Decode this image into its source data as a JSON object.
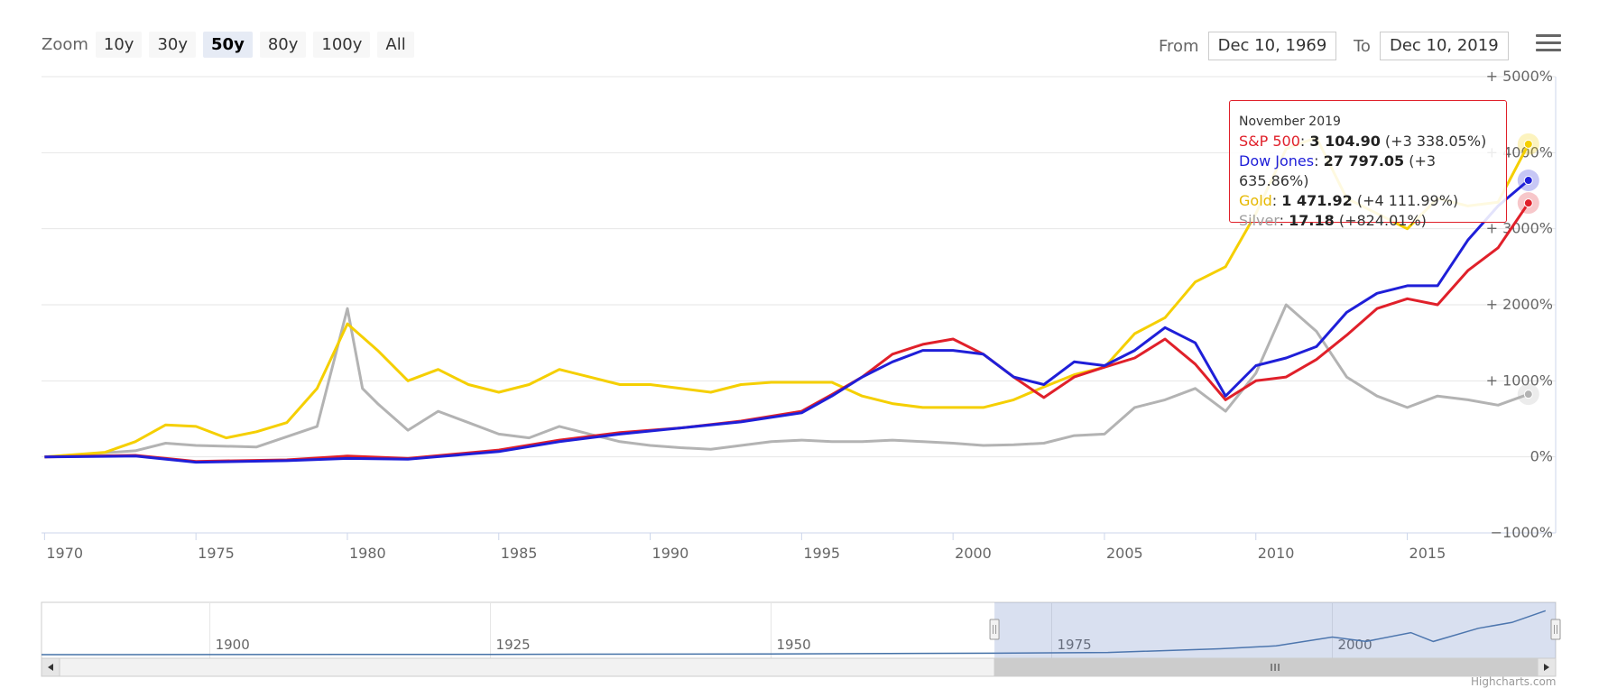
{
  "toolbar": {
    "zoom_label": "Zoom",
    "zoom_buttons": [
      "10y",
      "30y",
      "50y",
      "80y",
      "100y",
      "All"
    ],
    "zoom_active": "50y",
    "from_label": "From",
    "from_value": "Dec 10, 1969",
    "to_label": "To",
    "to_value": "Dec 10, 2019",
    "menu_icon": "hamburger-menu-icon"
  },
  "tooltip": {
    "header": "November 2019",
    "rows": [
      {
        "series": "S&P 500",
        "value": "3 104.90",
        "change": "(+3 338.05%)",
        "color": "#e0202a"
      },
      {
        "series": "Dow Jones",
        "value": "27 797.05",
        "change": "(+3 635.86%)",
        "color": "#1f1fd8"
      },
      {
        "series": "Gold",
        "value": "1 471.92",
        "change": "(+4 111.99%)",
        "color": "#f5cf00"
      },
      {
        "series": "Silver",
        "value": "17.18",
        "change": "(+824.01%)",
        "color": "#b3b3b3"
      }
    ]
  },
  "navigator": {
    "labels": [
      "1900",
      "1925",
      "1950",
      "1975",
      "2000"
    ],
    "range": [
      1969.9,
      2019.9
    ],
    "grip_icon": "scrollbar-grip-icon",
    "left_arrow_icon": "scroll-left-arrow-icon",
    "right_arrow_icon": "scroll-right-arrow-icon"
  },
  "credit": "Highcharts.com",
  "chart_data": {
    "type": "line",
    "title": "",
    "xlabel": "",
    "ylabel": "",
    "xlim": [
      1969.9,
      2019.9
    ],
    "ylim": [
      -1000,
      5000
    ],
    "x_ticks": [
      "1970",
      "1975",
      "1980",
      "1985",
      "1990",
      "1995",
      "2000",
      "2005",
      "2010",
      "2015"
    ],
    "y_ticks": [
      "−1000%",
      "0%",
      "+ 1000%",
      "+ 2000%",
      "+ 3000%",
      "+ 4000%",
      "+ 5000%"
    ],
    "grid": true,
    "series": [
      {
        "name": "S&P 500",
        "color": "#e0202a",
        "points": [
          [
            1970,
            0
          ],
          [
            1973,
            20
          ],
          [
            1975,
            -60
          ],
          [
            1978,
            -40
          ],
          [
            1980,
            10
          ],
          [
            1982,
            -20
          ],
          [
            1985,
            90
          ],
          [
            1987,
            220
          ],
          [
            1989,
            320
          ],
          [
            1991,
            380
          ],
          [
            1993,
            470
          ],
          [
            1995,
            600
          ],
          [
            1996,
            820
          ],
          [
            1997,
            1050
          ],
          [
            1998,
            1350
          ],
          [
            1999,
            1480
          ],
          [
            2000,
            1550
          ],
          [
            2001,
            1350
          ],
          [
            2002,
            1050
          ],
          [
            2003,
            780
          ],
          [
            2004,
            1050
          ],
          [
            2005,
            1180
          ],
          [
            2006,
            1300
          ],
          [
            2007,
            1550
          ],
          [
            2008,
            1220
          ],
          [
            2009,
            750
          ],
          [
            2010,
            1000
          ],
          [
            2011,
            1050
          ],
          [
            2012,
            1280
          ],
          [
            2013,
            1600
          ],
          [
            2014,
            1950
          ],
          [
            2015,
            2080
          ],
          [
            2016,
            2000
          ],
          [
            2017,
            2450
          ],
          [
            2018,
            2750
          ],
          [
            2019,
            3338
          ]
        ]
      },
      {
        "name": "Dow Jones",
        "color": "#1f1fd8",
        "points": [
          [
            1970,
            0
          ],
          [
            1973,
            10
          ],
          [
            1975,
            -70
          ],
          [
            1978,
            -50
          ],
          [
            1980,
            -20
          ],
          [
            1982,
            -30
          ],
          [
            1985,
            70
          ],
          [
            1987,
            200
          ],
          [
            1989,
            300
          ],
          [
            1991,
            380
          ],
          [
            1993,
            460
          ],
          [
            1995,
            580
          ],
          [
            1996,
            800
          ],
          [
            1997,
            1050
          ],
          [
            1998,
            1250
          ],
          [
            1999,
            1400
          ],
          [
            2000,
            1400
          ],
          [
            2001,
            1350
          ],
          [
            2002,
            1050
          ],
          [
            2003,
            950
          ],
          [
            2004,
            1250
          ],
          [
            2005,
            1200
          ],
          [
            2006,
            1400
          ],
          [
            2007,
            1700
          ],
          [
            2008,
            1500
          ],
          [
            2009,
            800
          ],
          [
            2010,
            1200
          ],
          [
            2011,
            1300
          ],
          [
            2012,
            1450
          ],
          [
            2013,
            1900
          ],
          [
            2014,
            2150
          ],
          [
            2015,
            2250
          ],
          [
            2016,
            2250
          ],
          [
            2017,
            2850
          ],
          [
            2018,
            3300
          ],
          [
            2019,
            3636
          ]
        ]
      },
      {
        "name": "Gold",
        "color": "#f5cf00",
        "points": [
          [
            1970,
            0
          ],
          [
            1972,
            60
          ],
          [
            1973,
            200
          ],
          [
            1974,
            420
          ],
          [
            1975,
            400
          ],
          [
            1976,
            250
          ],
          [
            1977,
            330
          ],
          [
            1978,
            450
          ],
          [
            1979,
            900
          ],
          [
            1980,
            1750
          ],
          [
            1981,
            1400
          ],
          [
            1982,
            1000
          ],
          [
            1983,
            1150
          ],
          [
            1984,
            950
          ],
          [
            1985,
            850
          ],
          [
            1986,
            950
          ],
          [
            1987,
            1150
          ],
          [
            1988,
            1050
          ],
          [
            1989,
            950
          ],
          [
            1990,
            950
          ],
          [
            1991,
            900
          ],
          [
            1992,
            850
          ],
          [
            1993,
            950
          ],
          [
            1994,
            980
          ],
          [
            1995,
            980
          ],
          [
            1996,
            980
          ],
          [
            1997,
            800
          ],
          [
            1998,
            700
          ],
          [
            1999,
            650
          ],
          [
            2000,
            650
          ],
          [
            2001,
            650
          ],
          [
            2002,
            750
          ],
          [
            2003,
            920
          ],
          [
            2004,
            1080
          ],
          [
            2005,
            1180
          ],
          [
            2006,
            1620
          ],
          [
            2007,
            1830
          ],
          [
            2008,
            2300
          ],
          [
            2009,
            2500
          ],
          [
            2010,
            3200
          ],
          [
            2011,
            4050
          ],
          [
            2012,
            4200
          ],
          [
            2013,
            3400
          ],
          [
            2014,
            3200
          ],
          [
            2015,
            3000
          ],
          [
            2016,
            3400
          ],
          [
            2017,
            3300
          ],
          [
            2018,
            3350
          ],
          [
            2019,
            4112
          ]
        ]
      },
      {
        "name": "Silver",
        "color": "#b3b3b3",
        "points": [
          [
            1970,
            0
          ],
          [
            1973,
            80
          ],
          [
            1974,
            180
          ],
          [
            1975,
            150
          ],
          [
            1977,
            130
          ],
          [
            1979,
            400
          ],
          [
            1980,
            1950
          ],
          [
            1980.5,
            900
          ],
          [
            1981,
            700
          ],
          [
            1982,
            350
          ],
          [
            1983,
            600
          ],
          [
            1984,
            450
          ],
          [
            1985,
            300
          ],
          [
            1986,
            250
          ],
          [
            1987,
            400
          ],
          [
            1988,
            300
          ],
          [
            1989,
            200
          ],
          [
            1990,
            150
          ],
          [
            1991,
            120
          ],
          [
            1992,
            100
          ],
          [
            1993,
            150
          ],
          [
            1994,
            200
          ],
          [
            1995,
            220
          ],
          [
            1996,
            200
          ],
          [
            1997,
            200
          ],
          [
            1998,
            220
          ],
          [
            1999,
            200
          ],
          [
            2000,
            180
          ],
          [
            2001,
            150
          ],
          [
            2002,
            160
          ],
          [
            2003,
            180
          ],
          [
            2004,
            280
          ],
          [
            2005,
            300
          ],
          [
            2006,
            650
          ],
          [
            2007,
            750
          ],
          [
            2008,
            900
          ],
          [
            2009,
            600
          ],
          [
            2010,
            1100
          ],
          [
            2011,
            2000
          ],
          [
            2012,
            1650
          ],
          [
            2013,
            1050
          ],
          [
            2014,
            800
          ],
          [
            2015,
            650
          ],
          [
            2016,
            800
          ],
          [
            2017,
            750
          ],
          [
            2018,
            680
          ],
          [
            2019,
            824
          ]
        ]
      }
    ],
    "navigator_series": {
      "color": "#4572a7",
      "points": [
        [
          1885,
          0
        ],
        [
          1925,
          2
        ],
        [
          1950,
          5
        ],
        [
          1970,
          10
        ],
        [
          1980,
          15
        ],
        [
          1990,
          40
        ],
        [
          1995,
          60
        ],
        [
          2000,
          120
        ],
        [
          2003,
          90
        ],
        [
          2007,
          150
        ],
        [
          2009,
          90
        ],
        [
          2013,
          180
        ],
        [
          2016,
          220
        ],
        [
          2019,
          300
        ]
      ]
    }
  }
}
